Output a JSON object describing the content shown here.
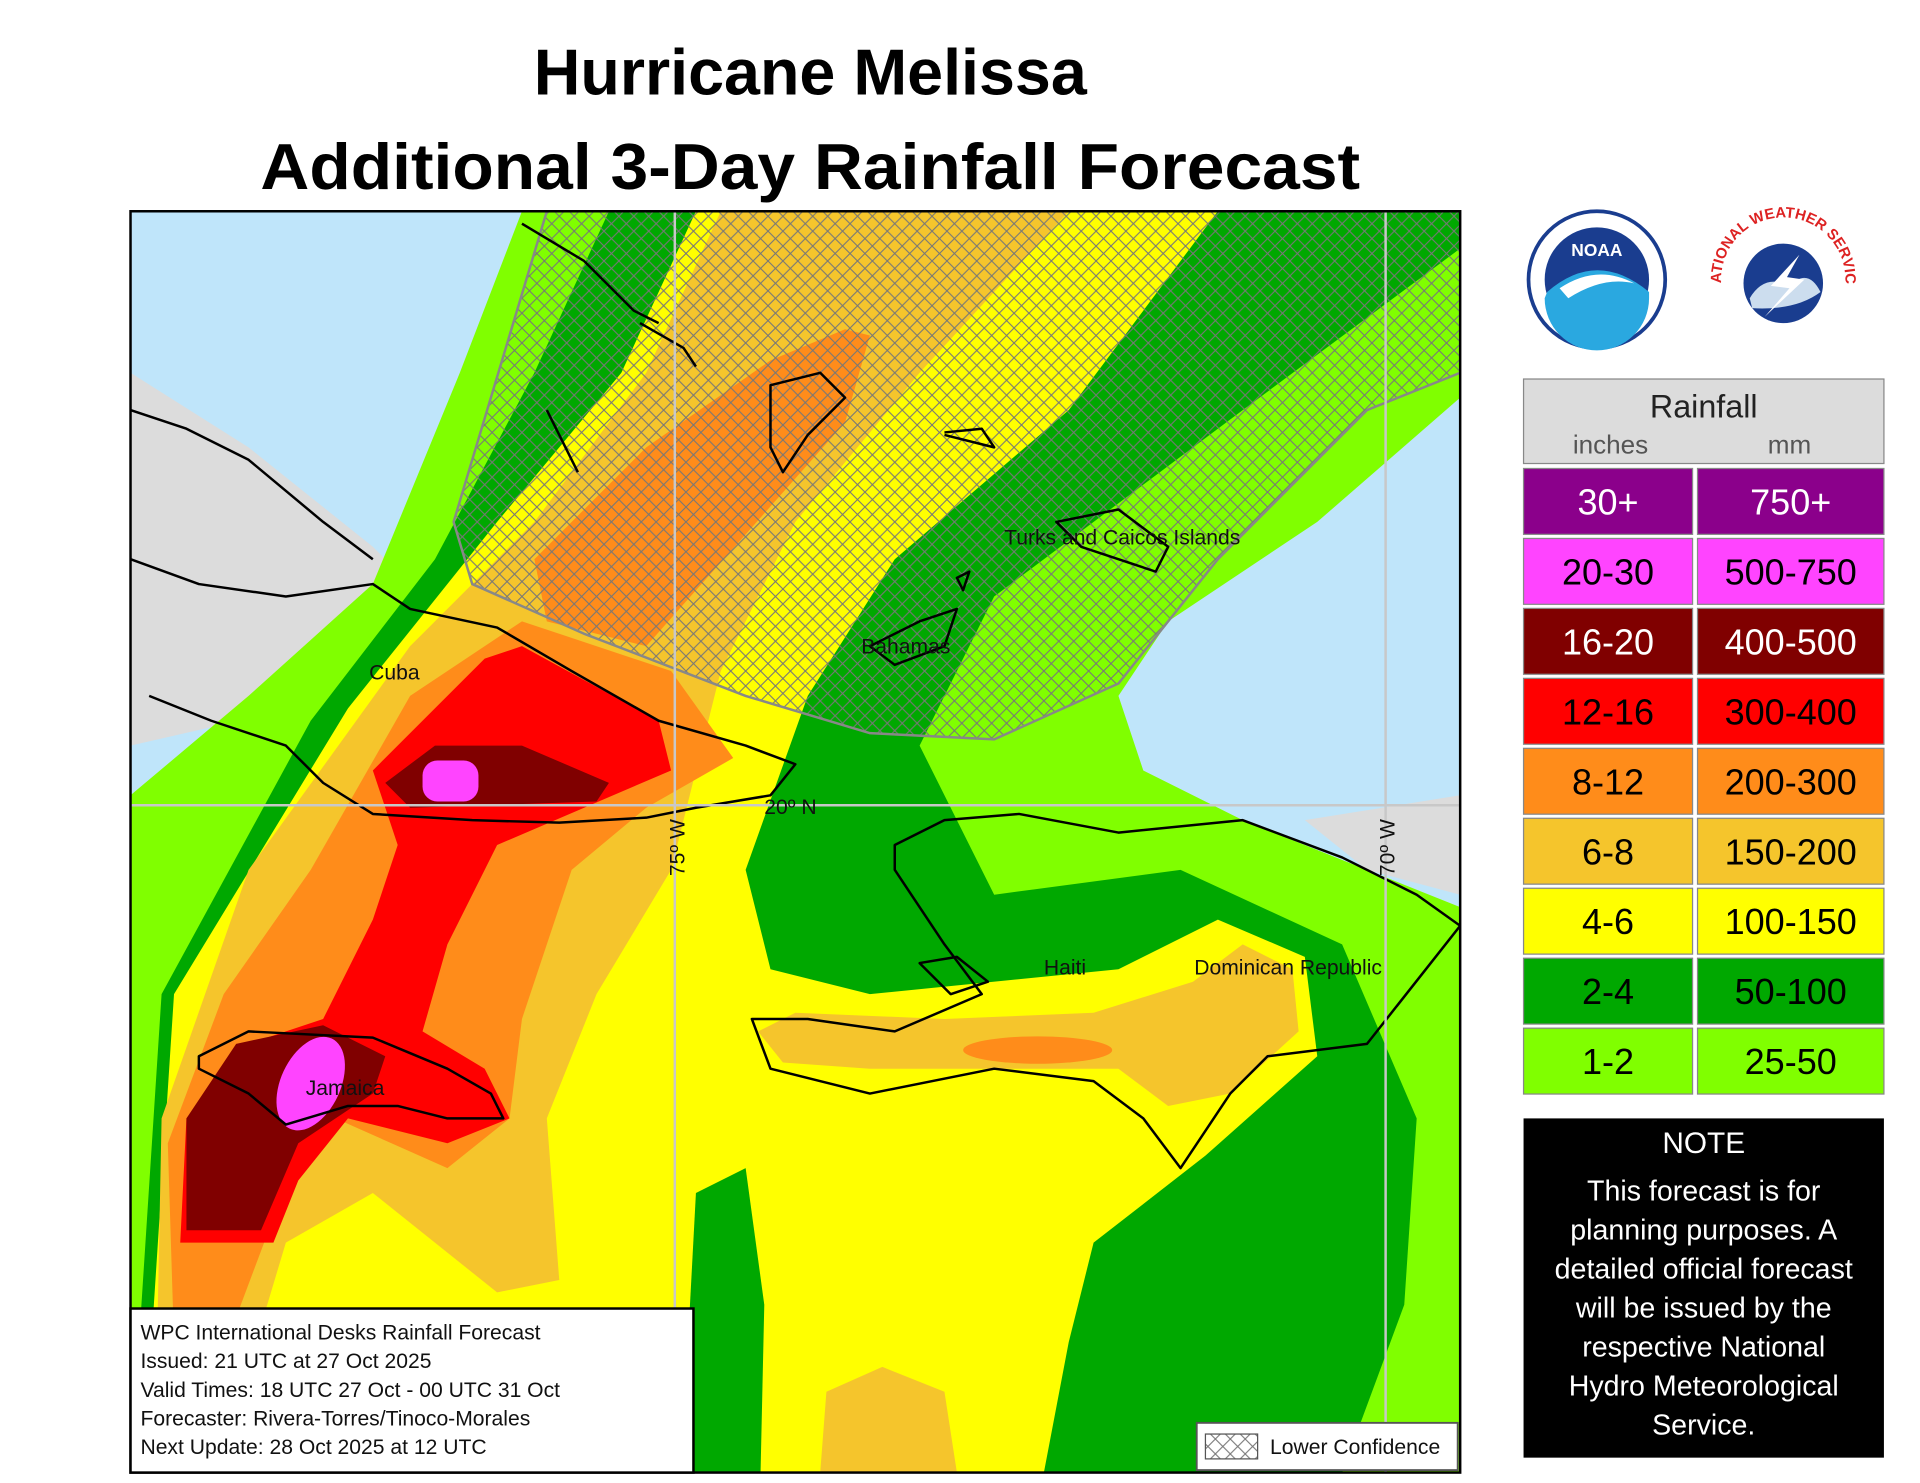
{
  "title": [
    "Hurricane Melissa",
    "Additional 3-Day Rainfall Forecast"
  ],
  "map": {
    "labels": [
      "Turks and Caicos Islands",
      "Bahamas",
      "Cuba",
      "Jamaica",
      "Haiti",
      "Dominican Republic"
    ],
    "grid_labels": [
      "20º N",
      "75º W",
      "70º W"
    ]
  },
  "info_box": [
    "WPC International Desks Rainfall Forecast",
    "Issued: 21 UTC at 27 Oct 2025",
    "Valid Times: 18 UTC 27 Oct - 00 UTC 31 Oct",
    "Forecaster: Rivera-Torres/Tinoco-Morales",
    "Next Update: 28 Oct 2025 at 12 UTC"
  ],
  "lower_confidence": "Lower Confidence",
  "logos": {
    "noaa": "NOAA",
    "nws": "NATIONAL WEATHER SERVICE"
  },
  "legend": {
    "title": "Rainfall",
    "units": [
      "inches",
      "mm"
    ],
    "rows": [
      {
        "inches": "30+",
        "mm": "750+",
        "color": "#8b008b",
        "text_color": "#ffffff"
      },
      {
        "inches": "20-30",
        "mm": "500-750",
        "color": "#ff44ff",
        "text_color": "#000000"
      },
      {
        "inches": "16-20",
        "mm": "400-500",
        "color": "#800000",
        "text_color": "#ffffff"
      },
      {
        "inches": "12-16",
        "mm": "300-400",
        "color": "#ff0000",
        "text_color": "#000000"
      },
      {
        "inches": "8-12",
        "mm": "200-300",
        "color": "#ff8c1a",
        "text_color": "#000000"
      },
      {
        "inches": "6-8",
        "mm": "150-200",
        "color": "#f5c52c",
        "text_color": "#000000"
      },
      {
        "inches": "4-6",
        "mm": "100-150",
        "color": "#ffff00",
        "text_color": "#000000"
      },
      {
        "inches": "2-4",
        "mm": "50-100",
        "color": "#00a800",
        "text_color": "#000000"
      },
      {
        "inches": "1-2",
        "mm": "25-50",
        "color": "#80ff00",
        "text_color": "#000000"
      }
    ]
  },
  "note": {
    "title": "NOTE",
    "lines": [
      "This forecast is for",
      "planning purposes. A",
      "detailed official forecast",
      "will be issued by the",
      "respective National",
      "Hydro Meteorological",
      "Service."
    ]
  }
}
